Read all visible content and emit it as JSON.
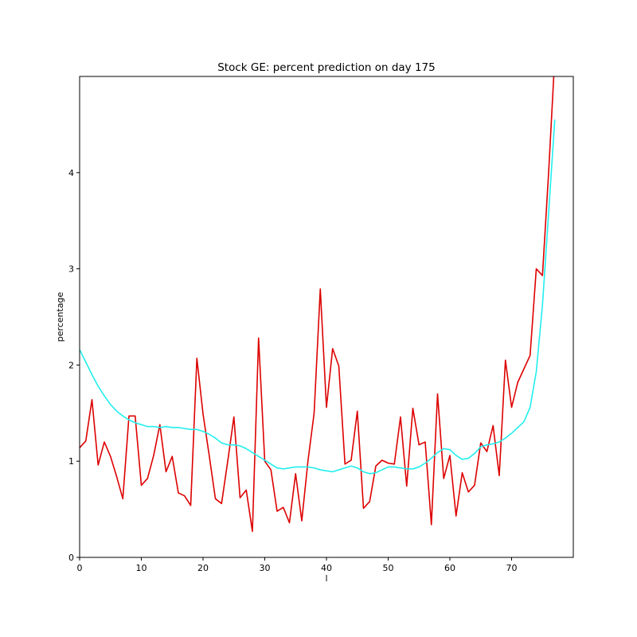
{
  "chart_data": {
    "type": "line",
    "title": "Stock GE: percent prediction on day 175",
    "xlabel": "l",
    "ylabel": "percentage",
    "xlim": [
      0,
      80
    ],
    "ylim": [
      0,
      5
    ],
    "xticks": [
      0,
      10,
      20,
      30,
      40,
      50,
      60,
      70
    ],
    "yticks": [
      0,
      1,
      2,
      3,
      4
    ],
    "grid": false,
    "legend": "none",
    "series": [
      {
        "color": "#dd0000",
        "x": [
          0,
          1,
          2,
          3,
          4,
          5,
          6,
          7,
          8,
          9,
          10,
          11,
          12,
          13,
          14,
          15,
          16,
          17,
          18,
          19,
          20,
          21,
          22,
          23,
          24,
          25,
          26,
          27,
          28,
          29,
          30,
          31,
          32,
          33,
          34,
          35,
          36,
          37,
          38,
          39,
          40,
          41,
          42,
          43,
          44,
          45,
          46,
          47,
          48,
          49,
          50,
          51,
          52,
          53,
          54,
          55,
          56,
          57,
          58,
          59,
          60,
          61,
          62,
          63,
          64,
          65,
          66,
          67,
          68,
          69,
          70,
          71,
          72,
          73,
          74,
          75,
          76,
          77
        ],
        "values": [
          1.14,
          1.21,
          1.64,
          0.96,
          1.2,
          1.05,
          0.84,
          0.61,
          1.47,
          1.47,
          0.75,
          0.82,
          1.06,
          1.38,
          0.89,
          1.05,
          0.67,
          0.64,
          0.54,
          2.07,
          1.49,
          1.06,
          0.61,
          0.56,
          1.0,
          1.46,
          0.62,
          0.7,
          0.27,
          2.28,
          1.0,
          0.91,
          0.48,
          0.52,
          0.36,
          0.87,
          0.38,
          1.0,
          1.5,
          2.79,
          1.56,
          2.17,
          1.99,
          0.97,
          1.01,
          1.52,
          0.51,
          0.58,
          0.95,
          1.01,
          0.98,
          0.97,
          1.46,
          0.74,
          1.55,
          1.17,
          1.2,
          0.34,
          1.7,
          0.82,
          1.06,
          0.43,
          0.88,
          0.68,
          0.75,
          1.19,
          1.1,
          1.37,
          0.85,
          2.05,
          1.56,
          1.82,
          1.96,
          2.1,
          3.0,
          2.93,
          4.0,
          5.2
        ]
      },
      {
        "color": "#22eeee",
        "x": [
          0,
          1,
          2,
          3,
          4,
          5,
          6,
          7,
          8,
          9,
          10,
          11,
          12,
          13,
          14,
          15,
          16,
          17,
          18,
          19,
          20,
          21,
          22,
          23,
          24,
          25,
          26,
          27,
          28,
          29,
          30,
          31,
          32,
          33,
          34,
          35,
          36,
          37,
          38,
          39,
          40,
          41,
          42,
          43,
          44,
          45,
          46,
          47,
          48,
          49,
          50,
          51,
          52,
          53,
          54,
          55,
          56,
          57,
          58,
          59,
          60,
          61,
          62,
          63,
          64,
          65,
          66,
          67,
          68,
          69,
          70,
          71,
          72,
          73,
          74,
          75,
          76,
          77
        ],
        "values": [
          2.16,
          2.03,
          1.9,
          1.78,
          1.68,
          1.59,
          1.52,
          1.47,
          1.43,
          1.4,
          1.38,
          1.36,
          1.36,
          1.35,
          1.36,
          1.35,
          1.35,
          1.34,
          1.33,
          1.33,
          1.31,
          1.28,
          1.24,
          1.19,
          1.17,
          1.17,
          1.16,
          1.13,
          1.09,
          1.05,
          1.01,
          0.97,
          0.93,
          0.92,
          0.93,
          0.94,
          0.94,
          0.94,
          0.93,
          0.91,
          0.9,
          0.89,
          0.91,
          0.93,
          0.95,
          0.93,
          0.89,
          0.87,
          0.88,
          0.91,
          0.94,
          0.94,
          0.93,
          0.92,
          0.92,
          0.94,
          0.98,
          1.03,
          1.09,
          1.13,
          1.12,
          1.06,
          1.02,
          1.03,
          1.08,
          1.15,
          1.17,
          1.18,
          1.2,
          1.24,
          1.29,
          1.35,
          1.41,
          1.56,
          1.93,
          2.62,
          3.58,
          4.55
        ]
      }
    ]
  }
}
